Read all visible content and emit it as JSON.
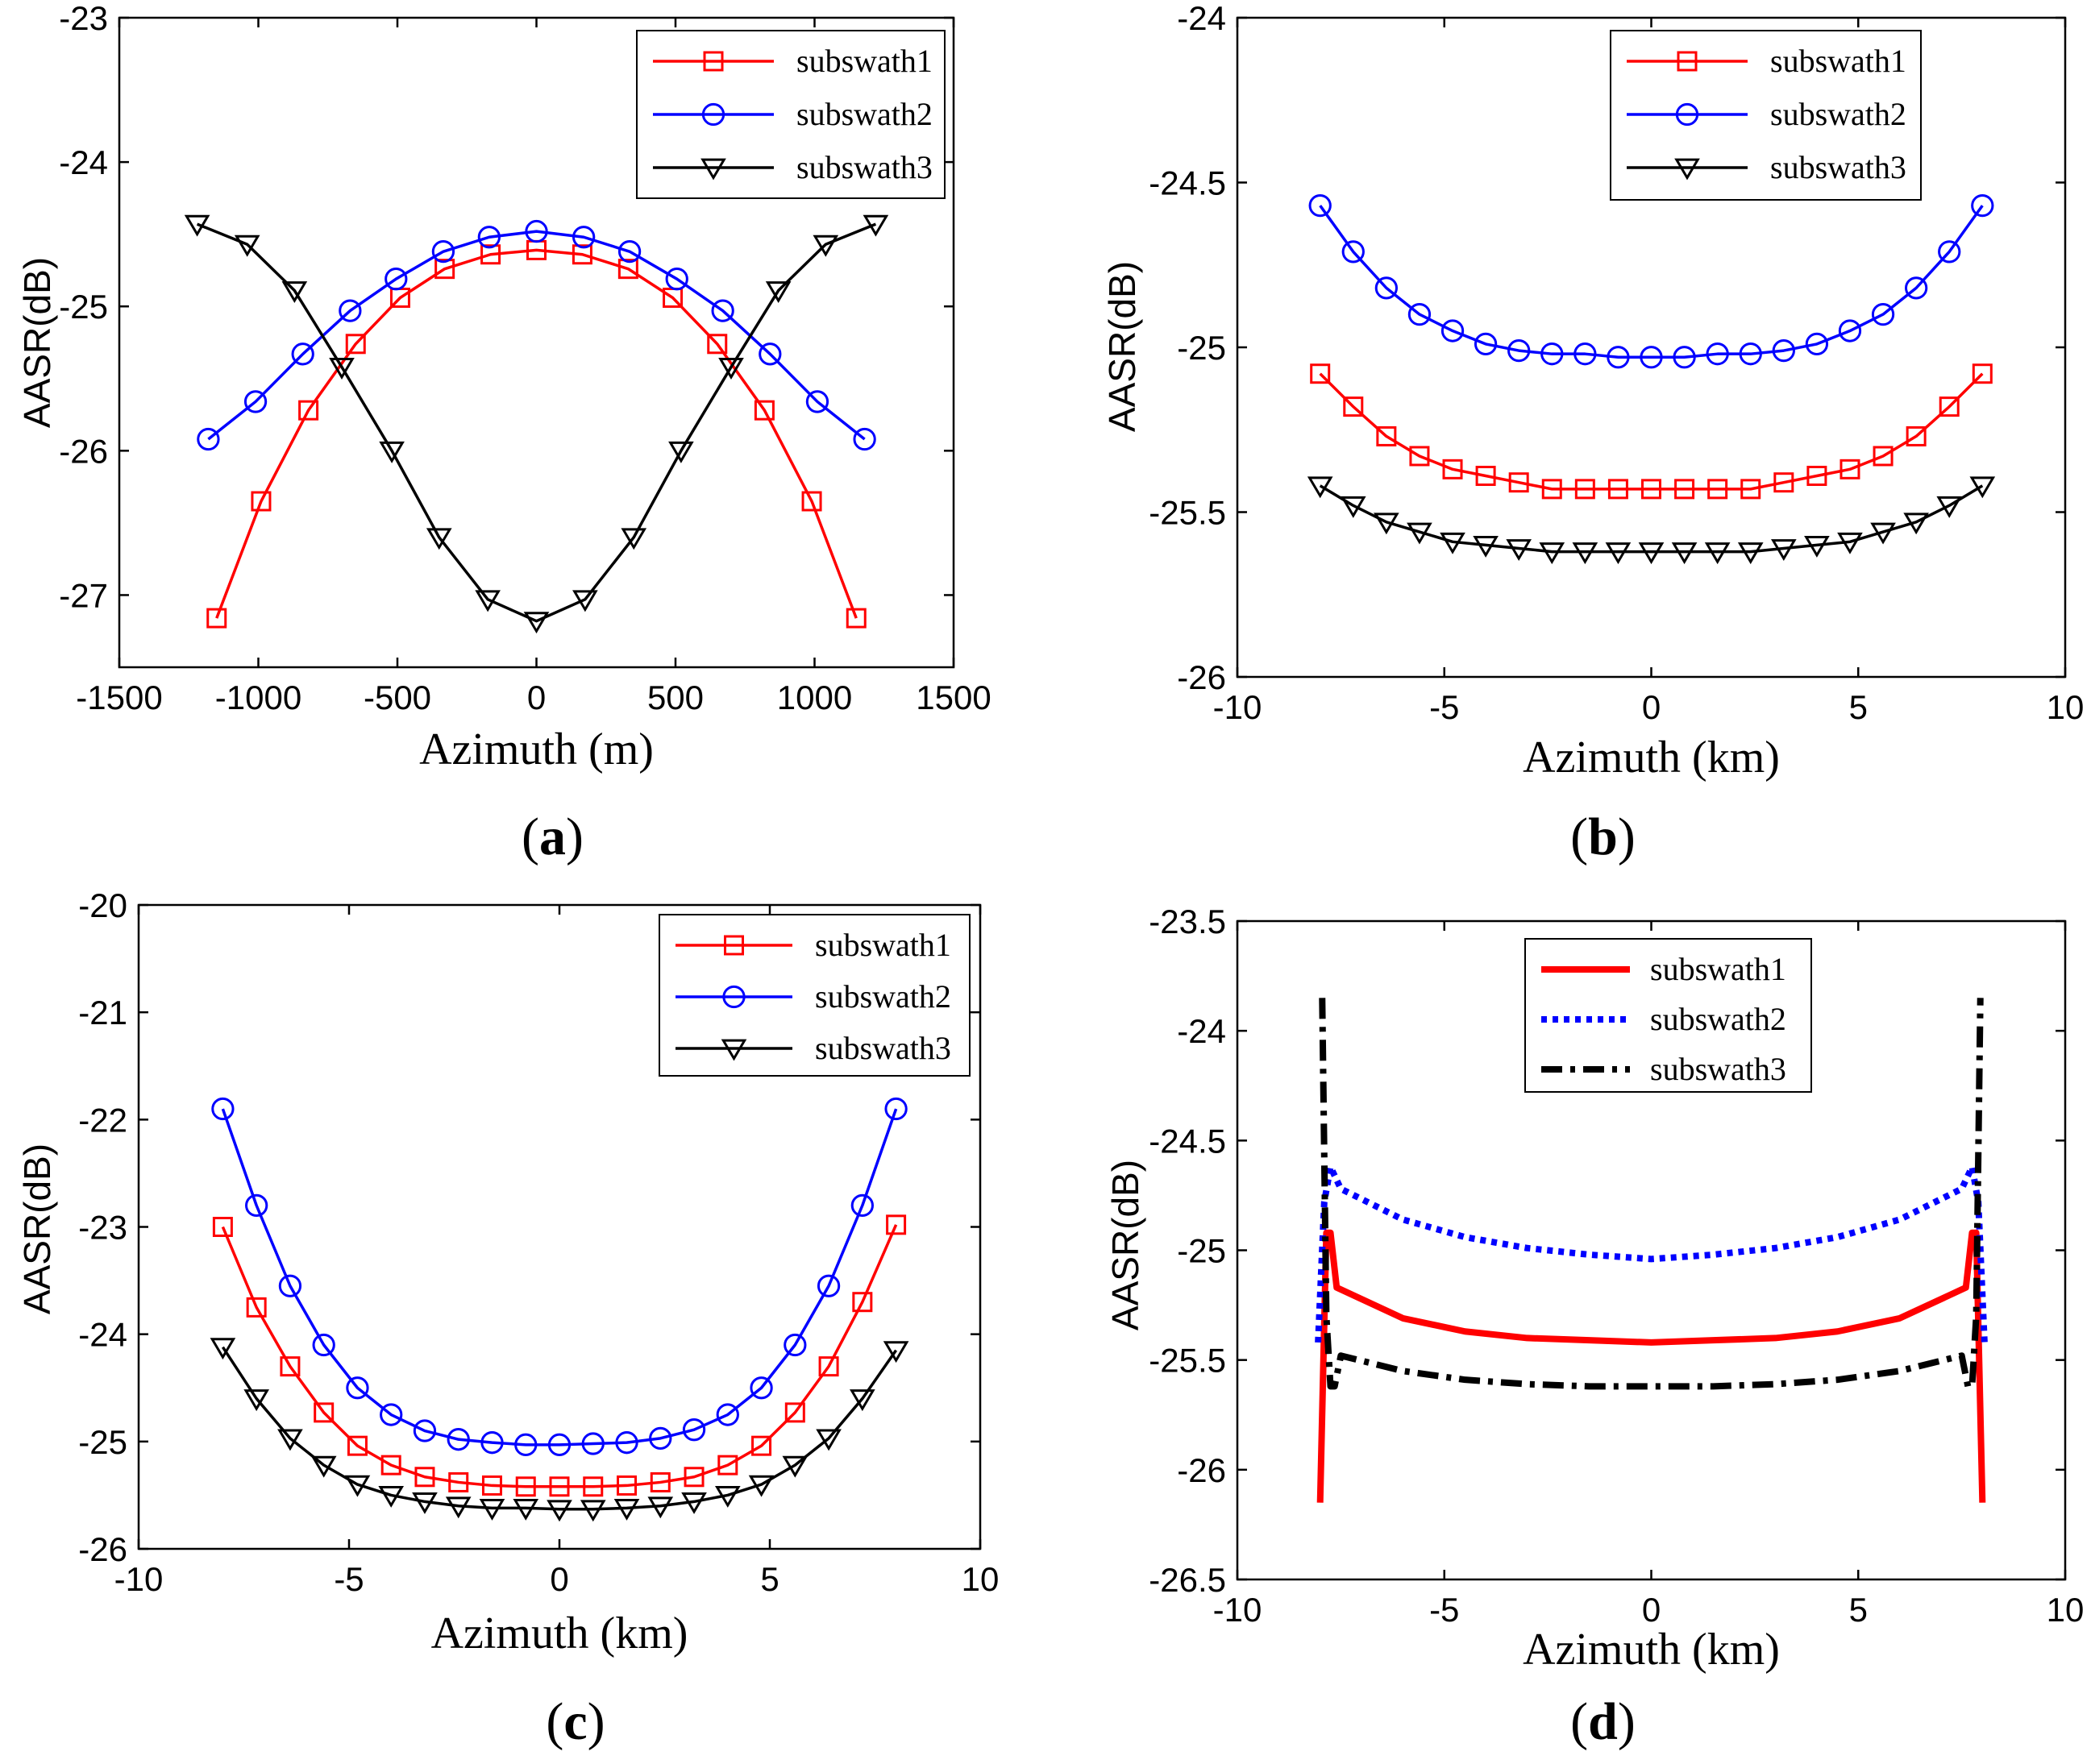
{
  "chart_data": [
    {
      "type": "line",
      "caption": "(a)",
      "caption_letter": "a",
      "xlabel": "Azimuth (m)",
      "ylabel": "AASR(dB)",
      "xlim": [
        -1500,
        1500
      ],
      "ylim": [
        -27.5,
        -23
      ],
      "x_ticks": [
        -1500,
        -1000,
        -500,
        0,
        500,
        1000,
        1500
      ],
      "y_ticks": [
        -27,
        -26,
        -25,
        -24,
        -23
      ],
      "legend_position": "top-right",
      "series": [
        {
          "name": "subswath1",
          "color": "#ff0000",
          "marker": "square",
          "style": "solid",
          "x": [
            -1150,
            -990,
            -820,
            -650,
            -490,
            -330,
            -165,
            0,
            165,
            330,
            490,
            650,
            820,
            990,
            1150
          ],
          "y": [
            -27.16,
            -26.35,
            -25.72,
            -25.26,
            -24.94,
            -24.74,
            -24.64,
            -24.61,
            -24.64,
            -24.74,
            -24.94,
            -25.26,
            -25.72,
            -26.35,
            -27.16
          ]
        },
        {
          "name": "subswath2",
          "color": "#0000ff",
          "marker": "circle",
          "style": "solid",
          "x": [
            -1180,
            -1010,
            -840,
            -670,
            -505,
            -335,
            -170,
            0,
            170,
            335,
            505,
            670,
            840,
            1010,
            1180
          ],
          "y": [
            -25.92,
            -25.66,
            -25.33,
            -25.03,
            -24.81,
            -24.62,
            -24.52,
            -24.48,
            -24.52,
            -24.62,
            -24.81,
            -25.03,
            -25.33,
            -25.66,
            -25.92
          ]
        },
        {
          "name": "subswath3",
          "color": "#000000",
          "marker": "triangle-down",
          "style": "solid",
          "x": [
            -1220,
            -1040,
            -870,
            -700,
            -520,
            -350,
            -175,
            0,
            175,
            350,
            520,
            700,
            870,
            1040,
            1220
          ],
          "y": [
            -24.43,
            -24.57,
            -24.89,
            -25.42,
            -26.0,
            -26.6,
            -27.03,
            -27.18,
            -27.03,
            -26.6,
            -26.0,
            -25.42,
            -24.89,
            -24.57,
            -24.43
          ]
        }
      ]
    },
    {
      "type": "line",
      "caption": "(b)",
      "caption_letter": "b",
      "xlabel": "Azimuth (km)",
      "ylabel": "AASR(dB)",
      "xlim": [
        -10,
        10
      ],
      "ylim": [
        -26,
        -24
      ],
      "x_ticks": [
        -10,
        -5,
        0,
        5,
        10
      ],
      "y_ticks": [
        -26,
        -25.5,
        -25,
        -24.5,
        -24
      ],
      "legend_position": "top-right",
      "series": [
        {
          "name": "subswath1",
          "color": "#ff0000",
          "marker": "square",
          "style": "solid",
          "x": [
            -8,
            -7.2,
            -6.4,
            -5.6,
            -4.8,
            -4.0,
            -3.2,
            -2.4,
            -1.6,
            -0.8,
            0,
            0.8,
            1.6,
            2.4,
            3.2,
            4.0,
            4.8,
            5.6,
            6.4,
            7.2,
            8
          ],
          "y": [
            -25.08,
            -25.18,
            -25.27,
            -25.33,
            -25.37,
            -25.39,
            -25.41,
            -25.43,
            -25.43,
            -25.43,
            -25.43,
            -25.43,
            -25.43,
            -25.43,
            -25.41,
            -25.39,
            -25.37,
            -25.33,
            -25.27,
            -25.18,
            -25.08
          ]
        },
        {
          "name": "subswath2",
          "color": "#0000ff",
          "marker": "circle",
          "style": "solid",
          "x": [
            -8,
            -7.2,
            -6.4,
            -5.6,
            -4.8,
            -4.0,
            -3.2,
            -2.4,
            -1.6,
            -0.8,
            0,
            0.8,
            1.6,
            2.4,
            3.2,
            4.0,
            4.8,
            5.6,
            6.4,
            7.2,
            8
          ],
          "y": [
            -24.57,
            -24.71,
            -24.82,
            -24.9,
            -24.95,
            -24.99,
            -25.01,
            -25.02,
            -25.02,
            -25.03,
            -25.03,
            -25.03,
            -25.02,
            -25.02,
            -25.01,
            -24.99,
            -24.95,
            -24.9,
            -24.82,
            -24.71,
            -24.57
          ]
        },
        {
          "name": "subswath3",
          "color": "#000000",
          "marker": "triangle-down",
          "style": "solid",
          "x": [
            -8,
            -7.2,
            -6.4,
            -5.6,
            -4.8,
            -4.0,
            -3.2,
            -2.4,
            -1.6,
            -0.8,
            0,
            0.8,
            1.6,
            2.4,
            3.2,
            4.0,
            4.8,
            5.6,
            6.4,
            7.2,
            8
          ],
          "y": [
            -25.42,
            -25.48,
            -25.53,
            -25.56,
            -25.59,
            -25.6,
            -25.61,
            -25.62,
            -25.62,
            -25.62,
            -25.62,
            -25.62,
            -25.62,
            -25.62,
            -25.61,
            -25.6,
            -25.59,
            -25.56,
            -25.53,
            -25.48,
            -25.42
          ]
        }
      ]
    },
    {
      "type": "line",
      "caption": "(c)",
      "caption_letter": "c",
      "xlabel": "Azimuth (km)",
      "ylabel": "AASR(dB)",
      "xlim": [
        -10,
        10
      ],
      "ylim": [
        -26,
        -20
      ],
      "x_ticks": [
        -10,
        -5,
        0,
        5,
        10
      ],
      "y_ticks": [
        -26,
        -25,
        -24,
        -23,
        -22,
        -21,
        -20
      ],
      "legend_position": "top-right",
      "series": [
        {
          "name": "subswath1",
          "color": "#ff0000",
          "marker": "square",
          "style": "solid",
          "x": [
            -8,
            -7.2,
            -6.4,
            -5.6,
            -4.8,
            -4.0,
            -3.2,
            -2.4,
            -1.6,
            -0.8,
            0,
            0.8,
            1.6,
            2.4,
            3.2,
            4.0,
            4.8,
            5.6,
            6.4,
            7.2,
            8
          ],
          "y": [
            -23.0,
            -23.75,
            -24.3,
            -24.73,
            -25.04,
            -25.22,
            -25.33,
            -25.38,
            -25.41,
            -25.42,
            -25.42,
            -25.42,
            -25.41,
            -25.38,
            -25.33,
            -25.22,
            -25.04,
            -24.73,
            -24.3,
            -23.7,
            -22.98
          ]
        },
        {
          "name": "subswath2",
          "color": "#0000ff",
          "marker": "circle",
          "style": "solid",
          "x": [
            -8,
            -7.2,
            -6.4,
            -5.6,
            -4.8,
            -4.0,
            -3.2,
            -2.4,
            -1.6,
            -0.8,
            0,
            0.8,
            1.6,
            2.4,
            3.2,
            4.0,
            4.8,
            5.6,
            6.4,
            7.2,
            8
          ],
          "y": [
            -21.9,
            -22.8,
            -23.55,
            -24.1,
            -24.5,
            -24.75,
            -24.9,
            -24.98,
            -25.01,
            -25.03,
            -25.03,
            -25.02,
            -25.01,
            -24.97,
            -24.89,
            -24.75,
            -24.5,
            -24.1,
            -23.55,
            -22.8,
            -21.9
          ]
        },
        {
          "name": "subswath3",
          "color": "#000000",
          "marker": "triangle-down",
          "style": "solid",
          "x": [
            -8,
            -7.2,
            -6.4,
            -5.6,
            -4.8,
            -4.0,
            -3.2,
            -2.4,
            -1.6,
            -0.8,
            0,
            0.8,
            1.6,
            2.4,
            3.2,
            4.0,
            4.8,
            5.6,
            6.4,
            7.2,
            8
          ],
          "y": [
            -24.12,
            -24.6,
            -24.97,
            -25.22,
            -25.4,
            -25.5,
            -25.56,
            -25.6,
            -25.62,
            -25.62,
            -25.63,
            -25.63,
            -25.62,
            -25.6,
            -25.56,
            -25.5,
            -25.4,
            -25.22,
            -24.97,
            -24.6,
            -24.15
          ]
        }
      ]
    },
    {
      "type": "line",
      "caption": "(d)",
      "caption_letter": "d",
      "xlabel": "Azimuth (km)",
      "ylabel": "AASR(dB)",
      "xlim": [
        -10,
        10
      ],
      "ylim": [
        -26.5,
        -23.5
      ],
      "x_ticks": [
        -10,
        -5,
        0,
        5,
        10
      ],
      "y_ticks": [
        -26.5,
        -26,
        -25.5,
        -25,
        -24.5,
        -24,
        -23.5
      ],
      "legend_position": "top-center",
      "series": [
        {
          "name": "subswath1",
          "color": "#ff0000",
          "marker": "none",
          "style": "solid",
          "x": [
            -8.0,
            -7.85,
            -7.75,
            -7.6,
            -6,
            -4.5,
            -3,
            -1.5,
            0,
            1.5,
            3,
            4.5,
            6,
            7.6,
            7.75,
            7.85,
            8.0
          ],
          "y": [
            -26.15,
            -24.92,
            -24.92,
            -25.17,
            -25.31,
            -25.37,
            -25.4,
            -25.41,
            -25.42,
            -25.41,
            -25.4,
            -25.37,
            -25.31,
            -25.17,
            -24.92,
            -24.92,
            -26.15
          ]
        },
        {
          "name": "subswath2",
          "color": "#0000ff",
          "marker": "none",
          "style": "dotted",
          "x": [
            -8.05,
            -7.9,
            -7.75,
            -7.5,
            -6,
            -4.5,
            -3,
            -1.5,
            0,
            1.5,
            3,
            4.5,
            6,
            7.5,
            7.75,
            7.9,
            8.05
          ],
          "y": [
            -25.42,
            -24.78,
            -24.62,
            -24.72,
            -24.86,
            -24.94,
            -24.99,
            -25.02,
            -25.04,
            -25.02,
            -24.99,
            -24.94,
            -24.86,
            -24.72,
            -24.62,
            -24.78,
            -25.42
          ]
        },
        {
          "name": "subswath3",
          "color": "#000000",
          "marker": "none",
          "style": "dashdot",
          "x": [
            -7.95,
            -7.85,
            -7.75,
            -7.65,
            -7.5,
            -6,
            -4.5,
            -3,
            -1.5,
            0,
            1.5,
            3,
            4.5,
            6,
            7.5,
            7.65,
            7.75,
            7.85,
            7.95
          ],
          "y": [
            -23.85,
            -25.3,
            -25.62,
            -25.62,
            -25.48,
            -25.55,
            -25.59,
            -25.61,
            -25.62,
            -25.62,
            -25.62,
            -25.61,
            -25.59,
            -25.55,
            -25.48,
            -25.62,
            -25.62,
            -25.3,
            -23.85
          ]
        }
      ]
    }
  ]
}
